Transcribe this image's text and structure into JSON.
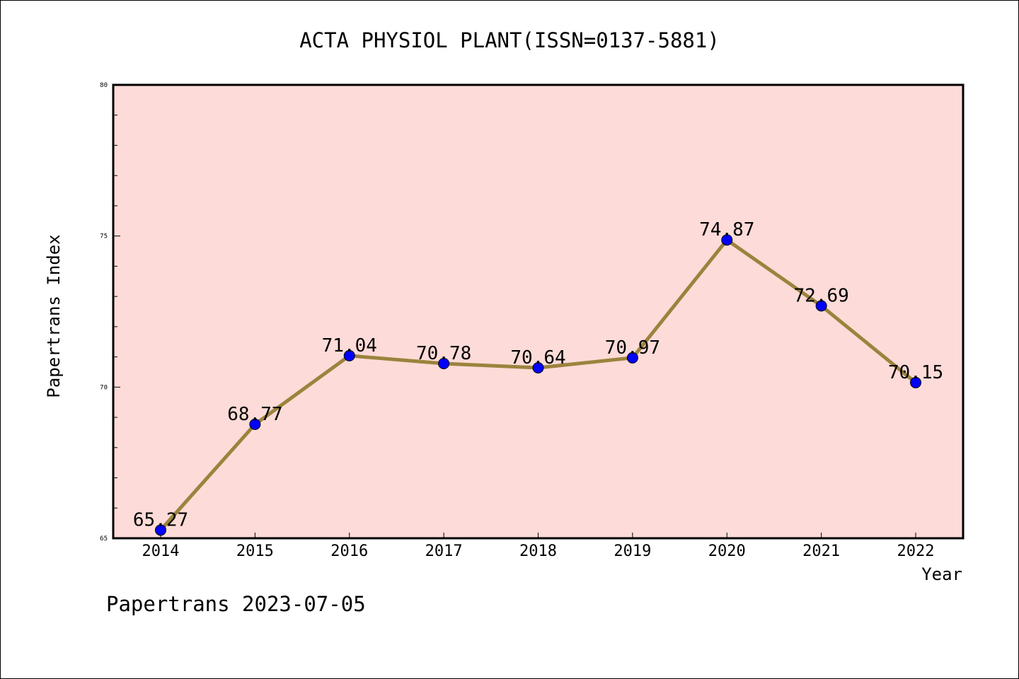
{
  "chart_data": {
    "type": "line",
    "title": "ACTA PHYSIOL PLANT(ISSN=0137-5881)",
    "xlabel": "Year",
    "ylabel": "Papertrans Index",
    "x": [
      "2014",
      "2015",
      "2016",
      "2017",
      "2018",
      "2019",
      "2020",
      "2021",
      "2022"
    ],
    "series": [
      {
        "values": [
          65.27,
          68.77,
          71.04,
          70.78,
          70.64,
          70.97,
          74.87,
          72.69,
          70.15
        ]
      }
    ],
    "data_labels": [
      "65.27",
      "68.77",
      "71.04",
      "70.78",
      "70.64",
      "70.97",
      "74.87",
      "72.69",
      "70.15"
    ],
    "ylim": [
      65,
      80
    ],
    "y_ticks": [
      "65",
      "70",
      "75",
      "80"
    ],
    "grid": false,
    "colors": {
      "plot_background": "#fddbd8",
      "line": "#9b833d",
      "marker": "#0000ff"
    }
  },
  "footer": "Papertrans 2023-07-05"
}
